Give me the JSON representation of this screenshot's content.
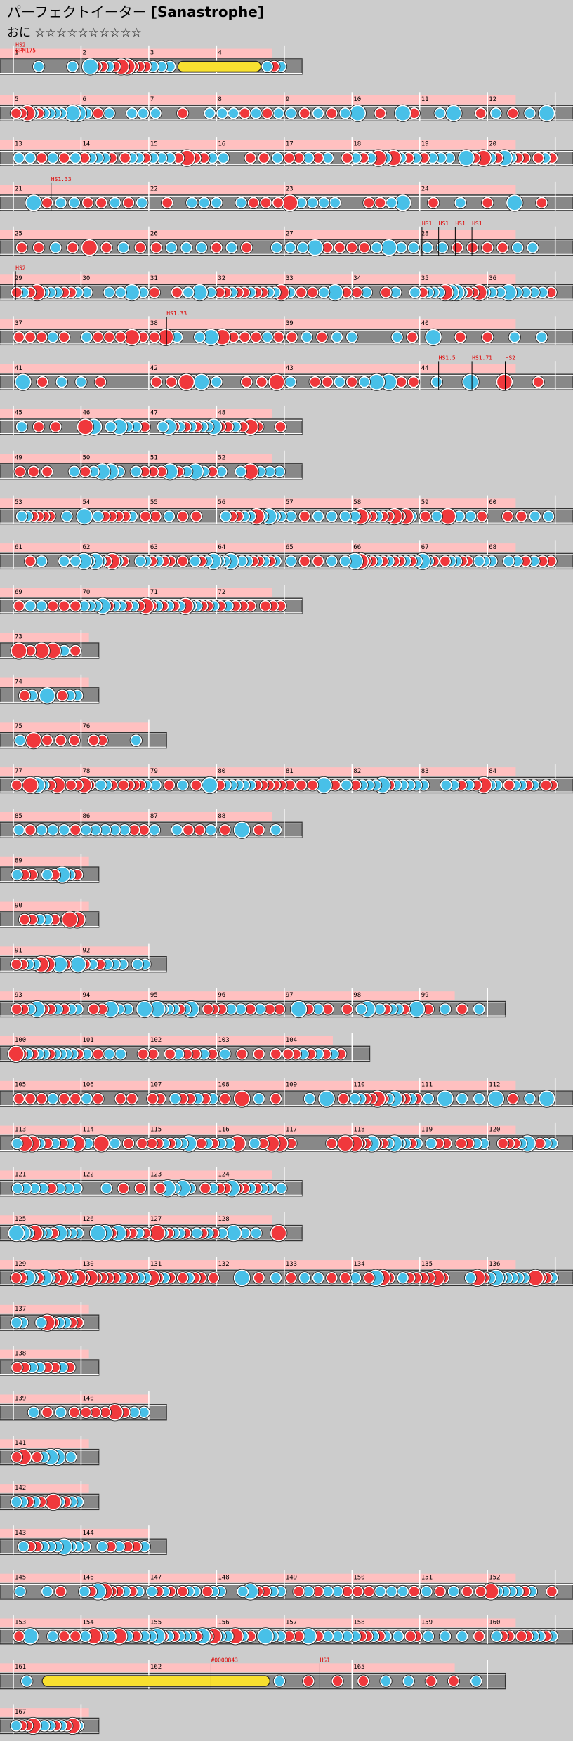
{
  "header": {
    "title": "パーフェクトイーター",
    "subtitle": "[Sanastrophe]",
    "difficulty": "おに ☆☆☆☆☆☆☆☆☆☆"
  },
  "rows": [
    {
      "measures": [
        "1",
        "2",
        "3",
        "4"
      ],
      "annotations": [
        "HS2",
        "BPM175"
      ]
    },
    {
      "measures": [
        "5",
        "6",
        "7",
        "8",
        "9",
        "10",
        "11",
        "12"
      ]
    },
    {
      "measures": [
        "13",
        "14",
        "15",
        "16",
        "17",
        "18",
        "19",
        "20"
      ]
    },
    {
      "measures": [
        "21",
        "22",
        "23",
        "24"
      ],
      "annotations": [
        "HS1.33"
      ]
    },
    {
      "measures": [
        "25",
        "26",
        "27",
        "28"
      ],
      "annotations": [
        "HS1",
        "HS1",
        "HS1",
        "HS1"
      ]
    },
    {
      "measures": [
        "29",
        "30",
        "31",
        "32",
        "33",
        "34",
        "35",
        "36"
      ],
      "annotations": [
        "HS2"
      ]
    },
    {
      "measures": [
        "37",
        "38",
        "39",
        "40"
      ],
      "annotations": [
        "HS1.33"
      ]
    },
    {
      "measures": [
        "41",
        "42",
        "43",
        "44"
      ],
      "annotations": [
        "HS1.5",
        "HS1.71",
        "HS2"
      ]
    },
    {
      "measures": [
        "45",
        "46",
        "47",
        "48"
      ]
    },
    {
      "measures": [
        "49",
        "50",
        "51",
        "52"
      ]
    },
    {
      "measures": [
        "53",
        "54",
        "55",
        "56",
        "57",
        "58",
        "59",
        "60"
      ]
    },
    {
      "measures": [
        "61",
        "62",
        "63",
        "64",
        "65",
        "66",
        "67",
        "68"
      ]
    },
    {
      "measures": [
        "69",
        "70",
        "71",
        "72"
      ]
    },
    {
      "measures": [
        "73"
      ]
    },
    {
      "measures": [
        "74"
      ]
    },
    {
      "measures": [
        "75",
        "76"
      ]
    },
    {
      "measures": [
        "77",
        "78",
        "79",
        "80",
        "81",
        "82",
        "83",
        "84"
      ]
    },
    {
      "measures": [
        "85",
        "86",
        "87",
        "88"
      ]
    },
    {
      "measures": [
        "89"
      ]
    },
    {
      "measures": [
        "90"
      ]
    },
    {
      "measures": [
        "91",
        "92"
      ]
    },
    {
      "measures": [
        "93",
        "94",
        "95",
        "96",
        "97",
        "98",
        "99"
      ]
    },
    {
      "measures": [
        "100",
        "101",
        "102",
        "103",
        "104"
      ]
    },
    {
      "measures": [
        "105",
        "106",
        "107",
        "108",
        "109",
        "110",
        "111",
        "112"
      ]
    },
    {
      "measures": [
        "113",
        "114",
        "115",
        "116",
        "117",
        "118",
        "119",
        "120"
      ]
    },
    {
      "measures": [
        "121",
        "122",
        "123",
        "124"
      ]
    },
    {
      "measures": [
        "125",
        "126",
        "127",
        "128"
      ]
    },
    {
      "measures": [
        "129",
        "130",
        "131",
        "132",
        "133",
        "134",
        "135",
        "136"
      ]
    },
    {
      "measures": [
        "137"
      ]
    },
    {
      "measures": [
        "138"
      ]
    },
    {
      "measures": [
        "139",
        "140"
      ]
    },
    {
      "measures": [
        "141"
      ]
    },
    {
      "measures": [
        "142"
      ]
    },
    {
      "measures": [
        "143",
        "144"
      ]
    },
    {
      "measures": [
        "145",
        "146",
        "147",
        "148",
        "149",
        "150",
        "151",
        "152"
      ]
    },
    {
      "measures": [
        "153",
        "154",
        "155",
        "156",
        "157",
        "158",
        "159",
        "160"
      ]
    },
    {
      "measures": [
        "161",
        "162",
        "165"
      ],
      "annotations": [
        "#0000843",
        "HS1"
      ]
    },
    {
      "measures": [
        "167"
      ]
    }
  ]
}
